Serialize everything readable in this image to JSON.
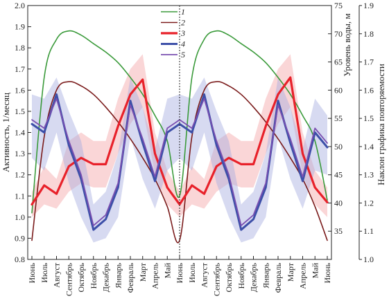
{
  "chart_data": {
    "type": "line",
    "left_axis": {
      "label": "Активность, 1/месяц",
      "range": [
        0.8,
        2.0
      ],
      "ticks": [
        "0.8",
        "0.9",
        "1.0",
        "1.1",
        "1.2",
        "1.3",
        "1.4",
        "1.5",
        "1.6",
        "1.7",
        "1.8",
        "1.9",
        "2.0"
      ]
    },
    "right_axis_1": {
      "label": "Уровень воды, м",
      "range": [
        30,
        75
      ],
      "ticks": [
        "35",
        "40",
        "45",
        "50",
        "55",
        "60",
        "65",
        "70",
        "75"
      ]
    },
    "right_axis_2": {
      "label": "Наклон графика повторяемости",
      "range": [
        1.0,
        1.9
      ],
      "ticks": [
        "1.0",
        "1.1",
        "1.2",
        "1.3",
        "1.4",
        "1.5",
        "1.6",
        "1.7",
        "1.8",
        "1.9"
      ]
    },
    "x_categories": [
      "Июнь",
      "Июль",
      "Август",
      "Сентябрь",
      "Октябрь",
      "Ноябрь",
      "Декабрь",
      "Январь",
      "Февраль",
      "Март",
      "Апрель",
      "Май",
      "Июнь",
      "Июль",
      "Август",
      "Сентябрь",
      "Октябрь",
      "Ноябрь",
      "Декабрь",
      "Январь",
      "Февраль",
      "Март",
      "Апрель",
      "Май",
      "Июнь"
    ],
    "divider_at_category_index": 12,
    "legend_position": "top-center",
    "series": [
      {
        "name": "1",
        "color": "#3a9a3a",
        "axis": "left",
        "values": [
          1.02,
          1.66,
          1.84,
          1.88,
          1.86,
          1.82,
          1.78,
          1.73,
          1.66,
          1.58,
          1.48,
          1.36,
          1.1,
          1.66,
          1.84,
          1.88,
          1.86,
          1.82,
          1.78,
          1.73,
          1.66,
          1.58,
          1.48,
          1.36,
          1.08
        ]
      },
      {
        "name": "2",
        "color": "#7a1a1a",
        "axis": "left",
        "values": [
          0.89,
          1.38,
          1.6,
          1.64,
          1.62,
          1.58,
          1.52,
          1.45,
          1.37,
          1.28,
          1.18,
          1.05,
          0.89,
          1.38,
          1.6,
          1.64,
          1.62,
          1.58,
          1.52,
          1.45,
          1.37,
          1.28,
          1.18,
          1.05,
          0.89
        ]
      },
      {
        "name": "3",
        "color": "#e8212a",
        "axis": "left",
        "values": [
          1.06,
          1.15,
          1.11,
          1.24,
          1.28,
          1.25,
          1.25,
          1.43,
          1.58,
          1.65,
          1.3,
          1.14,
          1.06,
          1.15,
          1.11,
          1.24,
          1.28,
          1.25,
          1.25,
          1.43,
          1.58,
          1.66,
          1.3,
          1.14,
          1.07
        ]
      },
      {
        "name": "4",
        "color": "#3d4fa8",
        "axis": "left",
        "values": [
          1.44,
          1.4,
          1.58,
          1.34,
          1.18,
          0.94,
          0.99,
          1.14,
          1.55,
          1.35,
          1.17,
          1.4,
          1.44,
          1.4,
          1.58,
          1.34,
          1.18,
          0.94,
          0.99,
          1.14,
          1.55,
          1.35,
          1.17,
          1.4,
          1.33
        ]
      },
      {
        "name": "5",
        "color": "#7a4fb0",
        "axis": "left",
        "values": [
          1.46,
          1.42,
          1.56,
          1.36,
          1.2,
          0.96,
          1.01,
          1.16,
          1.53,
          1.37,
          1.19,
          1.42,
          1.46,
          1.42,
          1.56,
          1.36,
          1.2,
          0.96,
          1.01,
          1.16,
          1.53,
          1.37,
          1.19,
          1.42,
          1.35
        ]
      }
    ],
    "bands": [
      {
        "series": "3",
        "color": "#f4a3a6",
        "low": [
          1.0,
          1.06,
          1.04,
          1.12,
          1.16,
          1.14,
          1.14,
          1.3,
          1.44,
          1.52,
          1.2,
          1.06,
          1.0,
          1.06,
          1.04,
          1.12,
          1.16,
          1.14,
          1.14,
          1.3,
          1.44,
          1.52,
          1.2,
          1.06,
          1.0
        ],
        "high": [
          1.12,
          1.24,
          1.18,
          1.36,
          1.4,
          1.36,
          1.36,
          1.56,
          1.7,
          1.77,
          1.4,
          1.22,
          1.12,
          1.24,
          1.18,
          1.36,
          1.4,
          1.36,
          1.36,
          1.56,
          1.7,
          1.77,
          1.4,
          1.22,
          1.14
        ]
      },
      {
        "series": "4",
        "color": "#a7aee0",
        "low": [
          1.28,
          1.22,
          1.4,
          1.16,
          1.0,
          0.88,
          0.9,
          1.0,
          1.38,
          1.18,
          1.04,
          1.22,
          1.28,
          1.22,
          1.4,
          1.16,
          1.0,
          0.88,
          0.9,
          1.0,
          1.38,
          1.18,
          1.04,
          1.22,
          1.2
        ],
        "high": [
          1.58,
          1.56,
          1.66,
          1.5,
          1.36,
          1.06,
          1.12,
          1.3,
          1.66,
          1.52,
          1.32,
          1.56,
          1.58,
          1.56,
          1.66,
          1.5,
          1.36,
          1.06,
          1.12,
          1.3,
          1.66,
          1.52,
          1.32,
          1.56,
          1.48
        ]
      }
    ]
  }
}
